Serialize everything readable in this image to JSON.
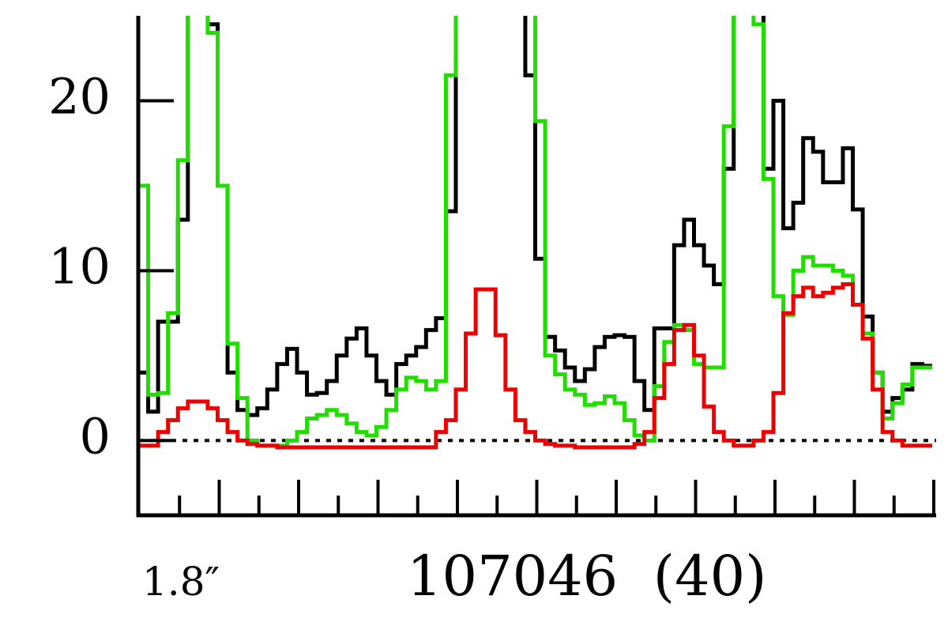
{
  "chart_data": {
    "type": "step",
    "annotations": [
      "1.8″",
      "107046  (40)"
    ],
    "series": [
      {
        "color": "#000000",
        "values": [
          4,
          1.7,
          7,
          7,
          13,
          28,
          28,
          24.5,
          15,
          4,
          1.8,
          1.5,
          1.9,
          3,
          4.5,
          5.4,
          4,
          2.7,
          2.8,
          3.5,
          5,
          6,
          6.6,
          5,
          3.5,
          2.7,
          4.5,
          5,
          5.5,
          6.5,
          7.2,
          13.5,
          28,
          28,
          28,
          28,
          28,
          28,
          28,
          21.5,
          10.7,
          6.1,
          5.3,
          4.3,
          3.5,
          4.2,
          5.5,
          6.1,
          6.2,
          6.1,
          3.5,
          1.8,
          6.6,
          6.6,
          11.5,
          13,
          11.5,
          10.3,
          9.2,
          16,
          28,
          28,
          28,
          16,
          20,
          12.5,
          14,
          17.8,
          17,
          15.2,
          15.2,
          17.2,
          13.6,
          7.3,
          4,
          1.7,
          2.5,
          3,
          4.5,
          4.4
        ]
      },
      {
        "color": "#22dd00",
        "values": [
          15,
          2.7,
          2.8,
          7.5,
          16.5,
          28,
          28,
          24,
          15,
          5.7,
          2.5,
          0,
          -0.3,
          -0.3,
          -0.3,
          0,
          0.5,
          1.3,
          1.5,
          1.8,
          1.5,
          1,
          0.5,
          0.3,
          0.8,
          1.8,
          3,
          3.7,
          3.5,
          3,
          3.5,
          21.5,
          28,
          28,
          28,
          28,
          28,
          28,
          28,
          28,
          18.8,
          5,
          3.9,
          3,
          2.7,
          2.1,
          2.2,
          2.6,
          2.2,
          1.2,
          0.3,
          0,
          3.2,
          5.8,
          6.8,
          6.5,
          4.5,
          4.3,
          4.3,
          18.5,
          28,
          28,
          24.5,
          15.4,
          8.5,
          7.4,
          10,
          10.8,
          10.3,
          10.3,
          10,
          9.7,
          8,
          6.3,
          4,
          1.3,
          2.2,
          3.3,
          4.3,
          4.3
        ]
      },
      {
        "color": "#ee0000",
        "values": [
          -0.3,
          -0.3,
          0.5,
          1.2,
          1.9,
          2.3,
          2.3,
          1.9,
          1.2,
          0.5,
          0,
          -0.2,
          -0.3,
          -0.3,
          -0.4,
          -0.4,
          -0.4,
          -0.4,
          -0.4,
          -0.4,
          -0.4,
          -0.4,
          -0.4,
          -0.4,
          -0.4,
          -0.4,
          -0.4,
          -0.4,
          -0.4,
          -0.4,
          0.5,
          1.2,
          3,
          6.3,
          8.9,
          8.9,
          6.2,
          3,
          1.2,
          0.5,
          0,
          -0.2,
          -0.3,
          -0.3,
          -0.4,
          -0.4,
          -0.4,
          -0.4,
          -0.4,
          -0.4,
          -0.2,
          0.5,
          2.5,
          4.5,
          6.5,
          6.8,
          5,
          2,
          0.5,
          0,
          -0.3,
          -0.3,
          0,
          0.5,
          2.8,
          7.5,
          8.5,
          9,
          8.5,
          8.7,
          9,
          9.2,
          8,
          6,
          3,
          0.5,
          0,
          -0.3,
          -0.3,
          -0.3
        ]
      }
    ],
    "ylim": [
      -4.4,
      25
    ],
    "yticks": [
      0,
      10,
      20
    ]
  }
}
